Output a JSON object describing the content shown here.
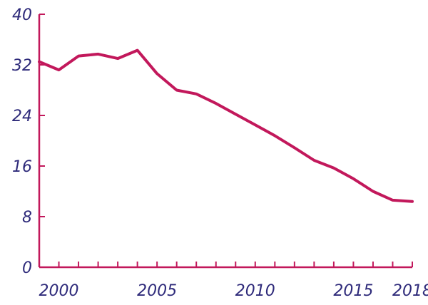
{
  "chart_data": {
    "type": "line",
    "title": "",
    "xlabel": "",
    "ylabel": "",
    "xlim": [
      1999,
      2018
    ],
    "ylim": [
      0,
      40
    ],
    "grid": false,
    "x_ticks": [
      2000,
      2005,
      2010,
      2015,
      2018
    ],
    "x_tick_labels": [
      "2000",
      "2005",
      "2010",
      "2015",
      "2018"
    ],
    "y_ticks": [
      0,
      8,
      16,
      24,
      32,
      40
    ],
    "y_tick_labels": [
      "0",
      "8",
      "16",
      "24",
      "32",
      "40"
    ],
    "series": [
      {
        "x": [
          1999,
          2000,
          2001,
          2002,
          2003,
          2004,
          2005,
          2006,
          2007,
          2008,
          2009,
          2010,
          2011,
          2012,
          2013,
          2014,
          2015,
          2016,
          2017,
          2018
        ],
        "values": [
          32.5,
          31.2,
          33.4,
          33.7,
          33.0,
          34.3,
          30.6,
          28.0,
          27.4,
          25.9,
          24.2,
          22.5,
          20.8,
          18.9,
          16.9,
          15.7,
          14.0,
          12.0,
          10.6,
          10.4
        ]
      }
    ]
  },
  "colors": {
    "line": "#c2185b",
    "axis": "#c2185b",
    "labels": "#2e2a7a"
  }
}
